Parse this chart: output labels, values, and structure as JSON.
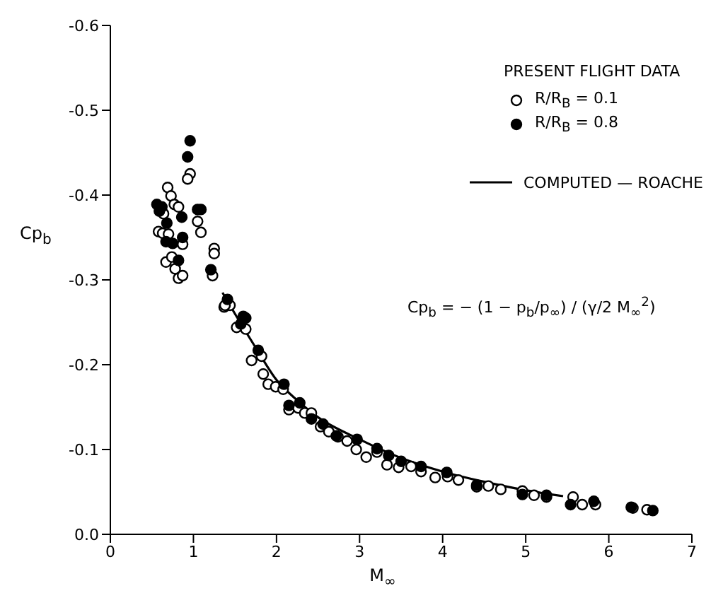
{
  "chart_data": {
    "type": "scatter",
    "xlabel": "M$_{∞}$",
    "ylabel": "Cp$_{b}$",
    "legend_title": "PRESENT FLIGHT DATA",
    "xlim": [
      0,
      7
    ],
    "xticks": [
      0,
      1,
      2,
      3,
      4,
      5,
      6,
      7
    ],
    "ylim": [
      0,
      -0.6
    ],
    "yticks": [
      {
        "value": 0,
        "label": "0.0"
      },
      -0.1,
      -0.2,
      -0.3,
      -0.4,
      -0.5,
      -0.6
    ],
    "legend": "top right",
    "marker": "circle",
    "annotations": [
      "Cp$_{b}$ = − (1 − p$_{b}$/p$_{∞}$) / (γ/2 M$_{∞}$$^{2}$)"
    ],
    "series": [
      {
        "name": "R/R$_{B}$ = 0.1",
        "color": "#ffffff",
        "x": [
          0.96,
          0.93,
          0.69,
          0.73,
          0.77,
          0.82,
          0.64,
          0.58,
          0.63,
          0.7,
          0.87,
          1.05,
          1.09,
          0.67,
          0.74,
          0.78,
          0.82,
          0.87,
          1.25,
          1.25,
          1.23,
          1.37,
          1.44,
          1.38,
          1.52,
          1.63,
          1.7,
          1.82,
          1.84,
          1.9,
          1.99,
          2.08,
          2.15,
          2.26,
          2.34,
          2.42,
          2.53,
          2.63,
          2.74,
          2.85,
          2.96,
          3.08,
          3.21,
          3.33,
          3.47,
          3.62,
          3.74,
          3.91,
          4.06,
          4.19,
          4.41,
          4.55,
          4.7,
          4.96,
          5.1,
          5.25,
          5.57,
          5.68,
          5.84,
          6.29,
          6.46
        ],
        "values": [
          -0.425,
          -0.419,
          -0.409,
          -0.399,
          -0.389,
          -0.386,
          -0.378,
          -0.357,
          -0.355,
          -0.354,
          -0.342,
          -0.369,
          -0.356,
          -0.321,
          -0.327,
          -0.313,
          -0.302,
          -0.305,
          -0.337,
          -0.331,
          -0.305,
          -0.268,
          -0.27,
          -0.27,
          -0.244,
          -0.242,
          -0.205,
          -0.21,
          -0.189,
          -0.177,
          -0.174,
          -0.171,
          -0.147,
          -0.149,
          -0.143,
          -0.143,
          -0.127,
          -0.121,
          -0.115,
          -0.11,
          -0.1,
          -0.091,
          -0.097,
          -0.082,
          -0.079,
          -0.08,
          -0.074,
          -0.067,
          -0.068,
          -0.064,
          -0.056,
          -0.057,
          -0.053,
          -0.051,
          -0.046,
          -0.044,
          -0.044,
          -0.035,
          -0.035,
          -0.031,
          -0.029
        ]
      },
      {
        "name": "R/R$_{B}$ = 0.8",
        "color": "#000000",
        "x": [
          0.96,
          0.93,
          0.56,
          0.62,
          0.59,
          0.68,
          0.86,
          0.67,
          0.75,
          0.87,
          0.82,
          1.05,
          1.09,
          1.21,
          1.41,
          1.6,
          1.63,
          1.57,
          1.78,
          2.09,
          2.15,
          2.28,
          2.42,
          2.56,
          2.72,
          2.97,
          3.21,
          3.35,
          3.5,
          3.74,
          4.05,
          4.41,
          4.96,
          5.25,
          5.54,
          5.82,
          6.27,
          6.53
        ],
        "values": [
          -0.464,
          -0.445,
          -0.389,
          -0.386,
          -0.381,
          -0.367,
          -0.374,
          -0.345,
          -0.343,
          -0.35,
          -0.323,
          -0.383,
          -0.383,
          -0.312,
          -0.277,
          -0.257,
          -0.255,
          -0.248,
          -0.217,
          -0.177,
          -0.152,
          -0.155,
          -0.136,
          -0.13,
          -0.116,
          -0.112,
          -0.101,
          -0.093,
          -0.086,
          -0.08,
          -0.073,
          -0.058,
          -0.047,
          -0.046,
          -0.035,
          -0.039,
          -0.032,
          -0.028
        ]
      },
      {
        "name": "COMPUTED — ROACHE",
        "type": "line",
        "marker": "none",
        "line_style": "solid",
        "color": "#000000",
        "x": [
          1.35,
          1.5,
          1.75,
          2.0,
          2.25,
          2.5,
          3.0,
          3.5,
          4.0,
          4.5,
          5.0,
          5.45
        ],
        "values": [
          -0.285,
          -0.26,
          -0.22,
          -0.182,
          -0.158,
          -0.138,
          -0.112,
          -0.09,
          -0.074,
          -0.062,
          -0.052,
          -0.045
        ]
      }
    ]
  }
}
